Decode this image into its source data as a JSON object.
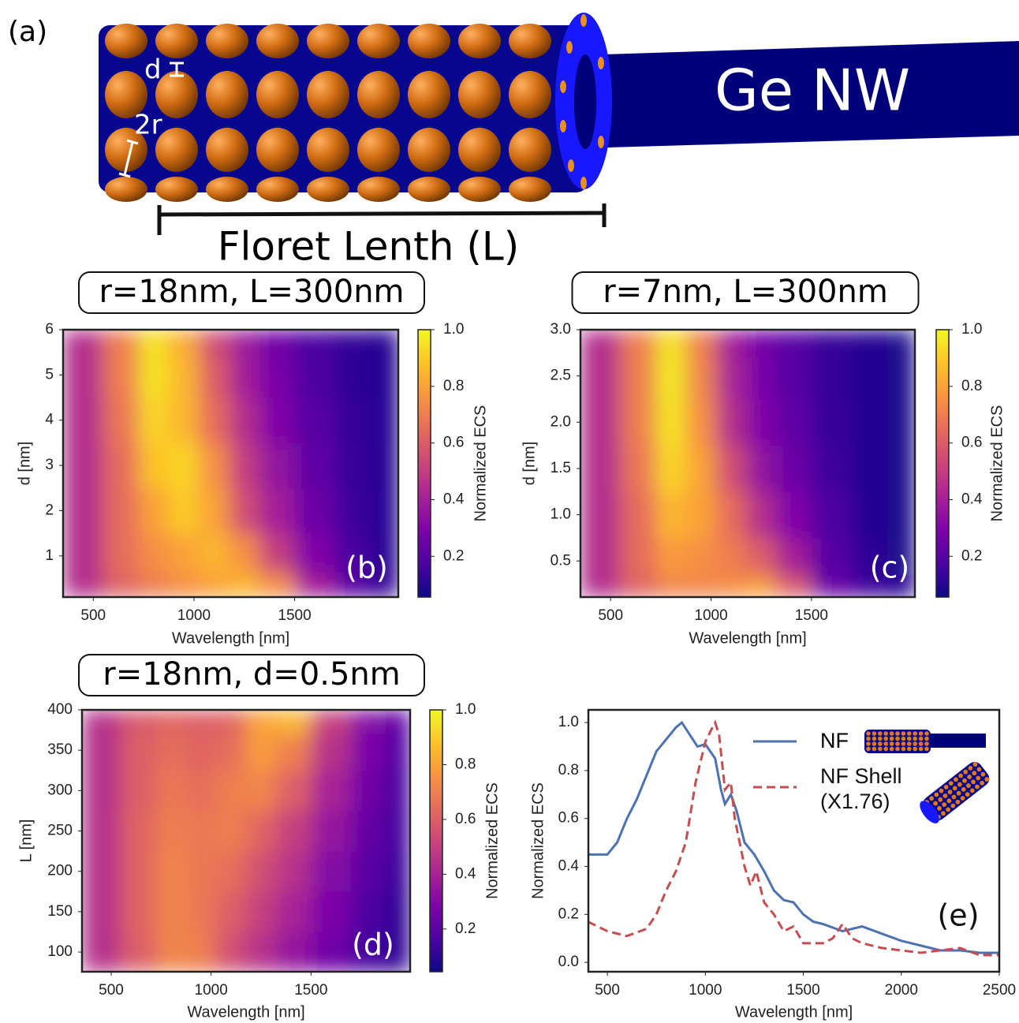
{
  "diagram": {
    "label": "(a)",
    "d_label": "d",
    "r_label": "2r",
    "wire_label": "Ge NW",
    "length_label": "Floret Lenth (L)"
  },
  "chart_data": [
    {
      "type": "heatmap",
      "title": "r=18nm, L=300nm",
      "panel_label": "(b)",
      "x_label": "Wavelength [nm]",
      "y_label": "d [nm]",
      "colorbar_label": "Normalized ECS",
      "colormap": "plasma",
      "x": [
        450,
        650,
        800,
        950,
        1100,
        1250,
        1400,
        1600,
        1800,
        1950
      ],
      "y": [
        0.3,
        1,
        2,
        3,
        4,
        5,
        5.8
      ],
      "z": [
        [
          0.45,
          0.62,
          0.7,
          0.75,
          0.8,
          0.85,
          0.75,
          0.4,
          0.2,
          0.12
        ],
        [
          0.45,
          0.65,
          0.75,
          0.8,
          0.85,
          0.75,
          0.5,
          0.3,
          0.17,
          0.1
        ],
        [
          0.45,
          0.65,
          0.8,
          0.9,
          0.8,
          0.55,
          0.4,
          0.25,
          0.15,
          0.1
        ],
        [
          0.45,
          0.65,
          0.88,
          0.92,
          0.75,
          0.5,
          0.35,
          0.22,
          0.14,
          0.1
        ],
        [
          0.45,
          0.68,
          0.92,
          0.85,
          0.65,
          0.45,
          0.3,
          0.2,
          0.13,
          0.1
        ],
        [
          0.45,
          0.7,
          0.95,
          0.85,
          0.6,
          0.4,
          0.28,
          0.18,
          0.12,
          0.1
        ],
        [
          0.45,
          0.7,
          0.95,
          0.82,
          0.55,
          0.38,
          0.26,
          0.17,
          0.12,
          0.1
        ]
      ],
      "xlim": [
        350,
        2015
      ],
      "ylim": [
        0.09,
        6
      ],
      "xticks": [
        500,
        1000,
        1500
      ],
      "yticks": [
        1,
        2,
        3,
        4,
        5,
        6
      ],
      "clim": [
        0.056,
        1.0
      ],
      "cticks": [
        0.2,
        0.4,
        0.6,
        0.8,
        {
          "value": 1,
          "label": "1.0"
        }
      ]
    },
    {
      "type": "heatmap",
      "title": "r=7nm, L=300nm",
      "panel_label": "(c)",
      "x_label": "Wavelength [nm]",
      "y_label": "d [nm]",
      "colorbar_label": "Normalized ECS",
      "colormap": "plasma",
      "x": [
        450,
        650,
        800,
        950,
        1100,
        1250,
        1400,
        1600,
        1800,
        1950
      ],
      "y": [
        0.2,
        0.5,
        1,
        1.5,
        2,
        2.5,
        2.9
      ],
      "z": [
        [
          0.45,
          0.62,
          0.72,
          0.72,
          0.75,
          0.8,
          0.6,
          0.25,
          0.15,
          0.1
        ],
        [
          0.45,
          0.65,
          0.78,
          0.75,
          0.7,
          0.6,
          0.4,
          0.2,
          0.12,
          0.08
        ],
        [
          0.45,
          0.65,
          0.85,
          0.8,
          0.65,
          0.45,
          0.3,
          0.18,
          0.1,
          0.08
        ],
        [
          0.45,
          0.68,
          0.92,
          0.8,
          0.55,
          0.35,
          0.25,
          0.15,
          0.1,
          0.08
        ],
        [
          0.45,
          0.7,
          0.95,
          0.75,
          0.45,
          0.3,
          0.22,
          0.14,
          0.1,
          0.08
        ],
        [
          0.45,
          0.7,
          0.96,
          0.72,
          0.42,
          0.28,
          0.2,
          0.13,
          0.1,
          0.08
        ],
        [
          0.45,
          0.7,
          0.95,
          0.7,
          0.4,
          0.27,
          0.2,
          0.13,
          0.1,
          0.08
        ]
      ],
      "xlim": [
        350,
        2015
      ],
      "ylim": [
        0.11,
        3
      ],
      "xticks": [
        500,
        1000,
        1500
      ],
      "yticks": [
        0.5,
        {
          "value": 1,
          "label": "1.0"
        },
        1.5,
        {
          "value": 2,
          "label": "2.0"
        },
        2.5,
        {
          "value": 3,
          "label": "3.0"
        }
      ],
      "clim": [
        0.056,
        1.0
      ],
      "cticks": [
        0.2,
        0.4,
        0.6,
        0.8,
        {
          "value": 1,
          "label": "1.0"
        }
      ]
    },
    {
      "type": "heatmap",
      "title": "r=18nm, d=0.5nm",
      "panel_label": "(d)",
      "x_label": "Wavelength [nm]",
      "y_label": "L [nm]",
      "colorbar_label": "Normalized ECS",
      "colormap": "plasma",
      "x": [
        450,
        650,
        800,
        950,
        1100,
        1250,
        1400,
        1600,
        1800,
        1950
      ],
      "y": [
        100,
        150,
        200,
        250,
        300,
        350,
        390
      ],
      "z": [
        [
          0.45,
          0.6,
          0.72,
          0.7,
          0.55,
          0.45,
          0.35,
          0.25,
          0.15,
          0.1
        ],
        [
          0.45,
          0.62,
          0.72,
          0.68,
          0.6,
          0.5,
          0.4,
          0.28,
          0.17,
          0.1
        ],
        [
          0.45,
          0.62,
          0.72,
          0.68,
          0.65,
          0.55,
          0.45,
          0.3,
          0.2,
          0.12
        ],
        [
          0.45,
          0.62,
          0.7,
          0.68,
          0.7,
          0.62,
          0.5,
          0.35,
          0.22,
          0.14
        ],
        [
          0.45,
          0.6,
          0.68,
          0.65,
          0.7,
          0.72,
          0.6,
          0.4,
          0.25,
          0.15
        ],
        [
          0.45,
          0.6,
          0.65,
          0.62,
          0.65,
          0.78,
          0.7,
          0.45,
          0.28,
          0.17
        ],
        [
          0.45,
          0.58,
          0.62,
          0.6,
          0.62,
          0.8,
          0.85,
          0.5,
          0.3,
          0.2
        ]
      ],
      "xlim": [
        354,
        1996
      ],
      "ylim": [
        75.6,
        400
      ],
      "xticks": [
        500,
        1000,
        1500
      ],
      "yticks": [
        100,
        150,
        200,
        250,
        300,
        350,
        400
      ],
      "clim": [
        0.044,
        1.0
      ],
      "cticks": [
        0.2,
        0.4,
        0.6,
        0.8,
        {
          "value": 1,
          "label": "1.0"
        }
      ]
    },
    {
      "type": "line",
      "panel_label": "(e)",
      "x_label": "Wavelength [nm]",
      "y_label": "Normalized ECS",
      "xlim": [
        403,
        2500
      ],
      "ylim": [
        -0.039,
        1.053
      ],
      "xticks": [
        500,
        1000,
        1500,
        2000,
        2500
      ],
      "yticks": [
        {
          "value": 0,
          "label": "0.0"
        },
        0.2,
        0.4,
        0.6,
        0.8,
        {
          "value": 1,
          "label": "1.0"
        }
      ],
      "series": [
        {
          "name": "NF",
          "color": "#4c72b0",
          "linestyle": "solid",
          "x": [
            400,
            500,
            550,
            600,
            650,
            700,
            750,
            800,
            850,
            880,
            920,
            960,
            1000,
            1050,
            1080,
            1100,
            1130,
            1160,
            1200,
            1250,
            1300,
            1350,
            1400,
            1450,
            1500,
            1550,
            1600,
            1700,
            1800,
            1900,
            2000,
            2100,
            2200,
            2300,
            2400,
            2500
          ],
          "values": [
            0.45,
            0.45,
            0.5,
            0.6,
            0.68,
            0.78,
            0.88,
            0.93,
            0.98,
            1.0,
            0.95,
            0.9,
            0.91,
            0.85,
            0.72,
            0.66,
            0.7,
            0.63,
            0.5,
            0.45,
            0.38,
            0.3,
            0.26,
            0.25,
            0.2,
            0.17,
            0.16,
            0.13,
            0.15,
            0.12,
            0.09,
            0.07,
            0.05,
            0.05,
            0.04,
            0.04
          ]
        },
        {
          "name": "NF Shell\n(X1.76)",
          "color": "#c44e52",
          "linestyle": "dashed",
          "x": [
            400,
            500,
            600,
            700,
            750,
            800,
            850,
            900,
            950,
            1000,
            1030,
            1050,
            1070,
            1100,
            1130,
            1150,
            1200,
            1230,
            1260,
            1300,
            1350,
            1400,
            1450,
            1500,
            1550,
            1600,
            1650,
            1700,
            1750,
            1800,
            1900,
            2000,
            2100,
            2200,
            2300,
            2400,
            2500
          ],
          "values": [
            0.17,
            0.13,
            0.11,
            0.14,
            0.2,
            0.3,
            0.38,
            0.5,
            0.75,
            0.92,
            0.97,
            1.0,
            0.95,
            0.72,
            0.75,
            0.6,
            0.4,
            0.32,
            0.38,
            0.25,
            0.2,
            0.13,
            0.15,
            0.08,
            0.08,
            0.08,
            0.1,
            0.16,
            0.1,
            0.08,
            0.06,
            0.05,
            0.04,
            0.05,
            0.06,
            0.03,
            0.03
          ]
        }
      ]
    }
  ]
}
